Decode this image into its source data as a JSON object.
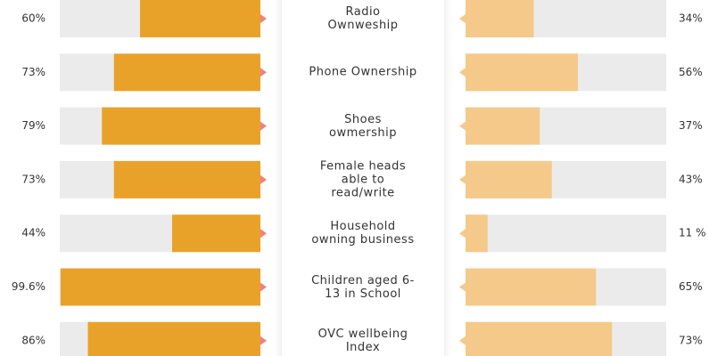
{
  "chart_data": {
    "type": "butterfly",
    "categories": [
      "Radio Ownweship",
      "Phone Ownership",
      "Shoes owmership",
      "Female heads able to read/write",
      "Household owning business",
      "Children aged 6-13 in School",
      "OVC wellbeing Index"
    ],
    "xlim": [
      0,
      100
    ],
    "series": [
      {
        "color": "#e9a229",
        "values": [
          60,
          73,
          79,
          73,
          44,
          99.6,
          86
        ],
        "value_labels": [
          "60%",
          "73%",
          "79%",
          "73%",
          "44%",
          "99.6%",
          "86%"
        ]
      },
      {
        "color": "#f5c98a",
        "values": [
          34,
          56,
          37,
          43,
          11,
          65,
          73
        ],
        "value_labels": [
          "34%",
          "56%",
          "37%",
          "43%",
          "11 %",
          "65%",
          "73%"
        ]
      }
    ]
  }
}
